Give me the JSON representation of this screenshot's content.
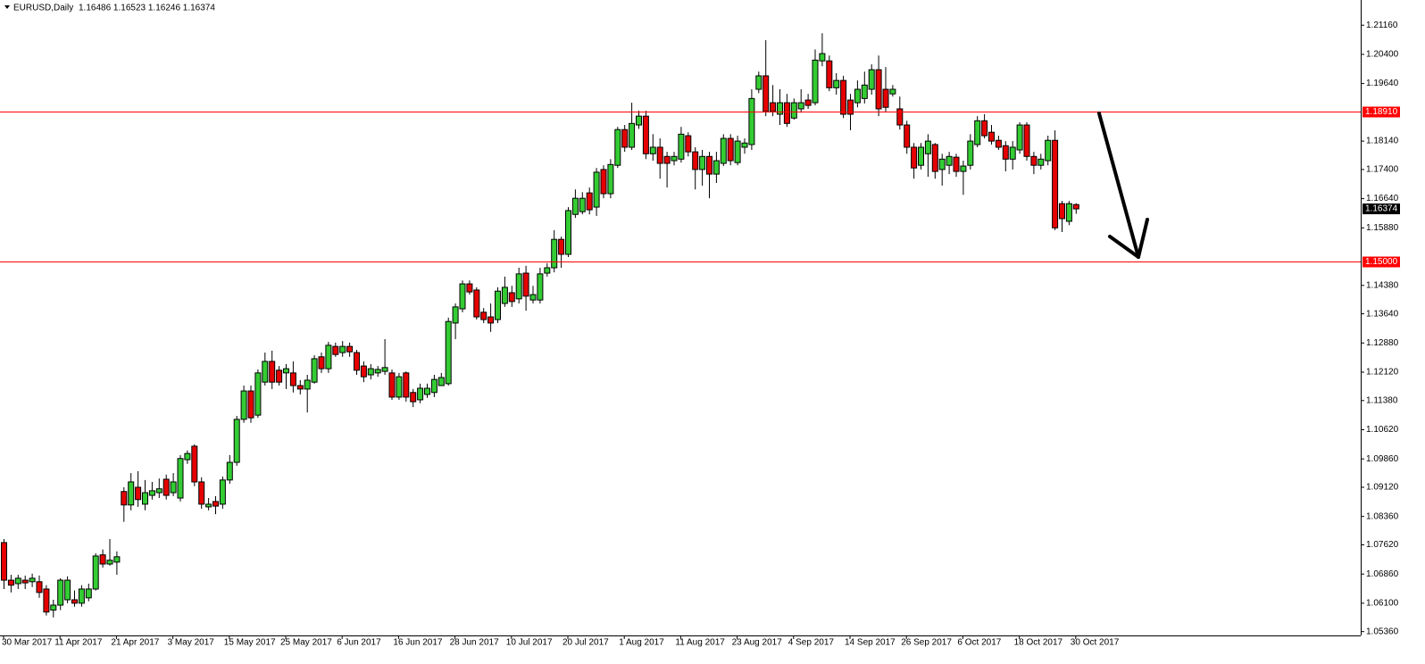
{
  "chart_data": {
    "type": "candlestick",
    "title": "EURUSD,Daily",
    "quote": "1.16486 1.16523 1.16246 1.16374",
    "up_color": "#33cc33",
    "down_color": "#e60000",
    "level_color": "#ff0000",
    "current_color": "#000000",
    "ylim": [
      1.0526,
      1.217
    ],
    "yticks": [
      {
        "value": 1.2116,
        "label": "1.21160"
      },
      {
        "value": 1.204,
        "label": "1.20400"
      },
      {
        "value": 1.1964,
        "label": "1.19640"
      },
      {
        "value": 1.1814,
        "label": "1.18140"
      },
      {
        "value": 1.174,
        "label": "1.17400"
      },
      {
        "value": 1.1664,
        "label": "1.16640"
      },
      {
        "value": 1.1588,
        "label": "1.15880"
      },
      {
        "value": 1.1438,
        "label": "1.14380"
      },
      {
        "value": 1.1364,
        "label": "1.13640"
      },
      {
        "value": 1.1288,
        "label": "1.12880"
      },
      {
        "value": 1.1212,
        "label": "1.12120"
      },
      {
        "value": 1.1138,
        "label": "1.11380"
      },
      {
        "value": 1.1062,
        "label": "1.10620"
      },
      {
        "value": 1.0986,
        "label": "1.09860"
      },
      {
        "value": 1.0912,
        "label": "1.09120"
      },
      {
        "value": 1.0836,
        "label": "1.08360"
      },
      {
        "value": 1.0762,
        "label": "1.07620"
      },
      {
        "value": 1.0686,
        "label": "1.06860"
      },
      {
        "value": 1.061,
        "label": "1.06100"
      },
      {
        "value": 1.0536,
        "label": "1.05360"
      }
    ],
    "levels": [
      {
        "value": 1.1891,
        "label": "1.18910"
      },
      {
        "value": 1.15,
        "label": "1.15000"
      }
    ],
    "current_price": {
      "value": 1.16374,
      "label": "1.16374"
    },
    "categories": [
      "30 Mar 2017",
      null,
      null,
      null,
      null,
      null,
      null,
      null,
      "11 Apr 2017",
      null,
      null,
      null,
      null,
      null,
      null,
      null,
      "21 Apr 2017",
      null,
      null,
      null,
      null,
      null,
      null,
      null,
      "3 May 2017",
      null,
      null,
      null,
      null,
      null,
      null,
      null,
      "15 May 2017",
      null,
      null,
      null,
      null,
      null,
      null,
      null,
      "25 May 2017",
      null,
      null,
      null,
      null,
      null,
      null,
      null,
      "6 Jun 2017",
      null,
      null,
      null,
      null,
      null,
      null,
      null,
      "16 Jun 2017",
      null,
      null,
      null,
      null,
      null,
      null,
      null,
      "28 Jun 2017",
      null,
      null,
      null,
      null,
      null,
      null,
      null,
      "10 Jul 2017",
      null,
      null,
      null,
      null,
      null,
      null,
      null,
      "20 Jul 2017",
      null,
      null,
      null,
      null,
      null,
      null,
      null,
      "1 Aug 2017",
      null,
      null,
      null,
      null,
      null,
      null,
      null,
      "11 Aug 2017",
      null,
      null,
      null,
      null,
      null,
      null,
      null,
      "23 Aug 2017",
      null,
      null,
      null,
      null,
      null,
      null,
      null,
      "4 Sep 2017",
      null,
      null,
      null,
      null,
      null,
      null,
      null,
      "14 Sep 2017",
      null,
      null,
      null,
      null,
      null,
      null,
      null,
      "26 Sep 2017",
      null,
      null,
      null,
      null,
      null,
      null,
      null,
      "6 Oct 2017",
      null,
      null,
      null,
      null,
      null,
      null,
      null,
      "18 Oct 2017",
      null,
      null,
      null,
      null,
      null,
      null,
      null,
      "30 Oct 2017"
    ],
    "open": [
      1.0768,
      1.067,
      1.0661,
      1.067,
      1.0666,
      1.0666,
      1.0647,
      1.0592,
      1.0605,
      1.0619,
      1.0619,
      1.061,
      1.0624,
      1.0647,
      1.0736,
      1.0712,
      1.0717,
      1.0901,
      1.0866,
      1.0912,
      1.0868,
      1.0891,
      1.0898,
      1.0933,
      1.0898,
      1.0884,
      1.0984,
      1.1019,
      1.0926,
      1.0861,
      1.0875,
      1.0868,
      1.0931,
      1.0977,
      1.1089,
      1.1163,
      1.11,
      1.1186,
      1.124,
      1.1217,
      1.121,
      1.121,
      1.1177,
      1.1168,
      1.1186,
      1.1252,
      1.1221,
      1.1279,
      1.1263,
      1.1279,
      1.1263,
      1.1228,
      1.1205,
      1.121,
      1.1214,
      1.121,
      1.1147,
      1.121,
      1.1159,
      1.114,
      1.1154,
      1.1159,
      1.1177,
      1.1182,
      1.134,
      1.1377,
      1.1442,
      1.1426,
      1.1368,
      1.1356,
      1.1349,
      1.1391,
      1.1419,
      1.1403,
      1.147,
      1.14,
      1.14,
      1.147,
      1.1484,
      1.1558,
      1.1519,
      1.1623,
      1.163,
      1.1679,
      1.1642,
      1.174,
      1.1677,
      1.1751,
      1.1844,
      1.1798,
      1.1856,
      1.1879,
      1.1781,
      1.1798,
      1.1774,
      1.1763,
      1.1767,
      1.1828,
      1.1786,
      1.174,
      1.1774,
      1.1728,
      1.1756,
      1.1821,
      1.1758,
      1.1798,
      1.1805,
      1.1949,
      1.1984,
      1.1914,
      1.1884,
      1.1914,
      1.1874,
      1.1898,
      1.1921,
      1.1914,
      1.2023,
      1.2023,
      1.1953,
      1.1972,
      1.1921,
      1.1914,
      1.1925,
      1.1949,
      1.2,
      1.1949,
      1.1937,
      1.1898,
      1.1856,
      1.1798,
      1.1751,
      1.1781,
      1.1805,
      1.174,
      1.1751,
      1.1772,
      1.1735,
      1.1751,
      1.1805,
      1.1867,
      1.1837,
      1.1816,
      1.1802,
      1.1767,
      1.1791,
      1.1856,
      1.1774,
      1.1751,
      1.1763,
      1.1816,
      1.1651,
      1.1605,
      1.16486
    ],
    "high": [
      1.0777,
      1.0684,
      1.0684,
      1.0682,
      1.0687,
      1.0682,
      1.0657,
      1.0619,
      1.0675,
      1.068,
      1.0643,
      1.0657,
      1.0661,
      1.074,
      1.075,
      1.0777,
      1.0745,
      1.0912,
      1.0949,
      1.0954,
      1.0931,
      1.0926,
      1.0935,
      1.0945,
      1.0949,
      1.0996,
      1.1008,
      1.1024,
      1.0938,
      1.0884,
      1.0889,
      1.094,
      1.0996,
      1.1098,
      1.1177,
      1.1177,
      1.1219,
      1.1263,
      1.1268,
      1.1228,
      1.1233,
      1.124,
      1.1191,
      1.1205,
      1.1256,
      1.1263,
      1.1291,
      1.1289,
      1.1293,
      1.1289,
      1.127,
      1.124,
      1.1233,
      1.1228,
      1.1298,
      1.1219,
      1.121,
      1.1214,
      1.1168,
      1.1182,
      1.1182,
      1.1205,
      1.121,
      1.1354,
      1.1391,
      1.1451,
      1.1451,
      1.1433,
      1.1379,
      1.1391,
      1.1433,
      1.1461,
      1.1437,
      1.1484,
      1.1489,
      1.1437,
      1.1484,
      1.1496,
      1.1582,
      1.1565,
      1.1642,
      1.1688,
      1.1681,
      1.1693,
      1.1744,
      1.1751,
      1.1767,
      1.1851,
      1.1856,
      1.1914,
      1.1893,
      1.1893,
      1.1832,
      1.1821,
      1.1786,
      1.1786,
      1.1851,
      1.1837,
      1.1798,
      1.1791,
      1.1786,
      1.1786,
      1.1832,
      1.1832,
      1.1828,
      1.1821,
      1.1949,
      1.1995,
      1.2077,
      1.196,
      1.1949,
      1.1937,
      1.1925,
      1.1949,
      1.1937,
      1.2053,
      1.2095,
      1.2037,
      1.1991,
      1.1984,
      1.1937,
      1.1972,
      1.1995,
      1.2014,
      1.2037,
      1.2007,
      1.196,
      1.193,
      1.1867,
      1.1809,
      1.1809,
      1.1832,
      1.1809,
      1.1781,
      1.1786,
      1.1781,
      1.1763,
      1.1832,
      1.1879,
      1.1884,
      1.1856,
      1.1828,
      1.1814,
      1.1814,
      1.1863,
      1.1863,
      1.1786,
      1.1781,
      1.1828,
      1.1842,
      1.1658,
      1.1658,
      1.16523
    ],
    "low": [
      1.0647,
      1.0638,
      1.0647,
      1.0647,
      1.0652,
      1.0624,
      1.0578,
      1.0573,
      1.0592,
      1.061,
      1.0601,
      1.0601,
      1.0615,
      1.0643,
      1.0703,
      1.0708,
      1.0684,
      1.0822,
      1.0852,
      1.0861,
      1.0852,
      1.088,
      1.0884,
      1.088,
      1.0889,
      1.0875,
      1.0973,
      1.0915,
      1.0856,
      1.0852,
      1.0842,
      1.0856,
      1.0921,
      1.0968,
      1.108,
      1.108,
      1.1093,
      1.1177,
      1.1168,
      1.1177,
      1.1168,
      1.1159,
      1.1154,
      1.1107,
      1.1182,
      1.121,
      1.121,
      1.1252,
      1.1252,
      1.1252,
      1.1205,
      1.1186,
      1.1193,
      1.12,
      1.1205,
      1.114,
      1.114,
      1.1135,
      1.1121,
      1.1131,
      1.1145,
      1.1147,
      1.1177,
      1.1177,
      1.1298,
      1.1368,
      1.1414,
      1.1349,
      1.134,
      1.1317,
      1.134,
      1.1382,
      1.1382,
      1.1391,
      1.1372,
      1.1391,
      1.1391,
      1.1461,
      1.1472,
      1.1484,
      1.1512,
      1.1614,
      1.1623,
      1.1623,
      1.1619,
      1.1665,
      1.1665,
      1.1744,
      1.1786,
      1.1791,
      1.1846,
      1.1767,
      1.1763,
      1.1716,
      1.1693,
      1.1751,
      1.1758,
      1.1774,
      1.1688,
      1.1698,
      1.1665,
      1.1705,
      1.1749,
      1.1751,
      1.1751,
      1.1781,
      1.1791,
      1.1939,
      1.1879,
      1.1879,
      1.1856,
      1.1851,
      1.187,
      1.1888,
      1.1898,
      1.1907,
      1.2009,
      1.1944,
      1.1935,
      1.1874,
      1.1842,
      1.1902,
      1.1912,
      1.1935,
      1.1879,
      1.1891,
      1.193,
      1.1844,
      1.1781,
      1.1716,
      1.174,
      1.1721,
      1.1716,
      1.1698,
      1.1728,
      1.1721,
      1.1674,
      1.174,
      1.1798,
      1.1821,
      1.1805,
      1.1791,
      1.1735,
      1.174,
      1.1781,
      1.1763,
      1.1728,
      1.174,
      1.1751,
      1.1582,
      1.1577,
      1.1595,
      1.16246
    ],
    "close": [
      1.067,
      1.0657,
      1.0675,
      1.0663,
      1.0675,
      1.0638,
      1.0587,
      1.0605,
      1.067,
      1.067,
      1.061,
      1.0647,
      1.0647,
      1.0733,
      1.0712,
      1.0722,
      1.0731,
      1.0866,
      1.0926,
      1.088,
      1.0898,
      1.0903,
      1.0908,
      1.0891,
      1.0926,
      1.0987,
      1.1,
      1.0926,
      1.0868,
      1.0868,
      1.0863,
      1.0931,
      1.0977,
      1.1089,
      1.1163,
      1.1093,
      1.121,
      1.124,
      1.1186,
      1.1186,
      1.1221,
      1.1177,
      1.1168,
      1.1191,
      1.1247,
      1.1221,
      1.1282,
      1.1258,
      1.1279,
      1.1265,
      1.1217,
      1.12,
      1.1221,
      1.1219,
      1.1224,
      1.1147,
      1.12,
      1.1147,
      1.1135,
      1.117,
      1.117,
      1.1193,
      1.1198,
      1.1344,
      1.1382,
      1.1442,
      1.1421,
      1.1356,
      1.1349,
      1.134,
      1.1423,
      1.1433,
      1.1396,
      1.1468,
      1.141,
      1.1414,
      1.1468,
      1.1484,
      1.1558,
      1.1519,
      1.1633,
      1.1665,
      1.1665,
      1.1635,
      1.1733,
      1.1677,
      1.1753,
      1.1844,
      1.1798,
      1.186,
      1.1879,
      1.1781,
      1.1798,
      1.1756,
      1.1756,
      1.1774,
      1.1832,
      1.1786,
      1.174,
      1.1774,
      1.1728,
      1.1763,
      1.1821,
      1.1763,
      1.1814,
      1.1809,
      1.1925,
      1.1984,
      1.1891,
      1.1891,
      1.1914,
      1.186,
      1.1914,
      1.1914,
      1.1907,
      1.2025,
      1.2042,
      1.1953,
      1.1972,
      1.1884,
      1.1884,
      1.1949,
      1.196,
      1.2,
      1.1898,
      1.1902,
      1.1949,
      1.1856,
      1.1798,
      1.1744,
      1.1798,
      1.1814,
      1.1735,
      1.1767,
      1.1774,
      1.1735,
      1.1749,
      1.1814,
      1.1867,
      1.1828,
      1.1814,
      1.1798,
      1.1767,
      1.1798,
      1.1856,
      1.1774,
      1.1751,
      1.1767,
      1.1816,
      1.1588,
      1.1612,
      1.1651,
      1.16374
    ]
  }
}
